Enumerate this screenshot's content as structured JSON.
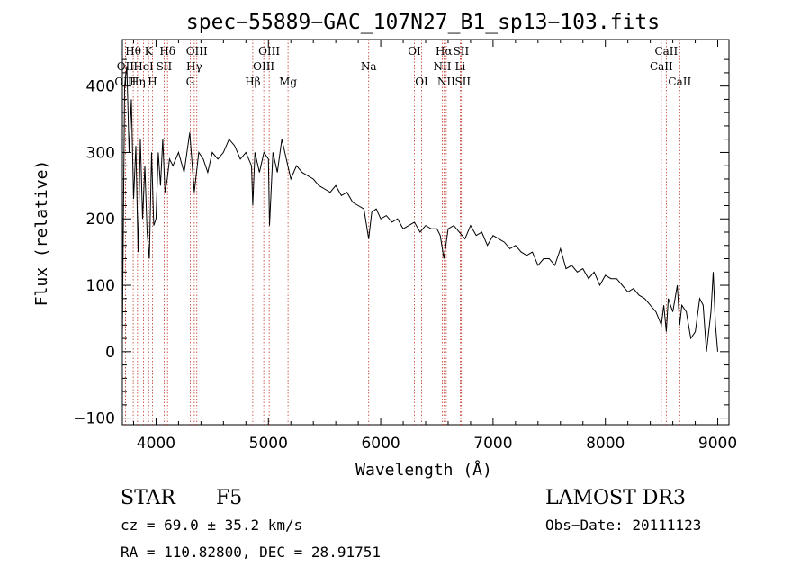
{
  "chart_data": {
    "type": "line",
    "title": "spec−55889−GAC_107N27_B1_sp13−103.fits",
    "xlabel": "Wavelength (Å)",
    "ylabel": "Flux (relative)",
    "xlim": [
      3700,
      9100
    ],
    "ylim": [
      -110,
      470
    ],
    "xticks": [
      4000,
      5000,
      6000,
      7000,
      8000,
      9000
    ],
    "yticks": [
      -100,
      0,
      100,
      200,
      300,
      400
    ],
    "ytick_labels": [
      "−100",
      "0",
      "100",
      "200",
      "300",
      "400"
    ],
    "series": [
      {
        "name": "flux",
        "x": [
          3700,
          3720,
          3740,
          3760,
          3780,
          3800,
          3820,
          3840,
          3860,
          3880,
          3900,
          3920,
          3940,
          3960,
          3980,
          4000,
          4020,
          4040,
          4060,
          4080,
          4100,
          4120,
          4150,
          4200,
          4250,
          4300,
          4340,
          4380,
          4420,
          4460,
          4500,
          4550,
          4600,
          4650,
          4700,
          4750,
          4800,
          4850,
          4861,
          4880,
          4920,
          4960,
          5000,
          5010,
          5040,
          5080,
          5120,
          5160,
          5200,
          5250,
          5300,
          5350,
          5400,
          5450,
          5500,
          5550,
          5600,
          5650,
          5700,
          5750,
          5800,
          5850,
          5893,
          5920,
          5960,
          6000,
          6050,
          6100,
          6150,
          6200,
          6250,
          6300,
          6350,
          6400,
          6450,
          6500,
          6530,
          6563,
          6600,
          6650,
          6700,
          6750,
          6800,
          6850,
          6900,
          6950,
          7000,
          7050,
          7100,
          7150,
          7200,
          7250,
          7300,
          7350,
          7400,
          7450,
          7500,
          7550,
          7600,
          7650,
          7700,
          7750,
          7800,
          7850,
          7900,
          7950,
          8000,
          8050,
          8100,
          8150,
          8200,
          8250,
          8300,
          8350,
          8400,
          8450,
          8498,
          8520,
          8542,
          8560,
          8600,
          8640,
          8662,
          8680,
          8720,
          8760,
          8800,
          8840,
          8870,
          8900,
          8940,
          8960,
          8980,
          9000
        ],
        "y": [
          20,
          400,
          430,
          300,
          380,
          230,
          310,
          150,
          320,
          200,
          280,
          180,
          140,
          300,
          190,
          200,
          300,
          250,
          320,
          240,
          260,
          290,
          280,
          300,
          270,
          330,
          240,
          300,
          290,
          270,
          300,
          290,
          300,
          320,
          310,
          290,
          300,
          280,
          220,
          300,
          270,
          300,
          290,
          190,
          300,
          270,
          320,
          290,
          260,
          280,
          270,
          265,
          260,
          250,
          245,
          240,
          250,
          235,
          240,
          225,
          220,
          215,
          170,
          210,
          215,
          200,
          205,
          195,
          200,
          185,
          190,
          195,
          180,
          190,
          185,
          185,
          175,
          140,
          185,
          190,
          180,
          170,
          190,
          175,
          180,
          160,
          175,
          170,
          165,
          155,
          160,
          150,
          145,
          150,
          130,
          140,
          140,
          130,
          155,
          125,
          130,
          120,
          125,
          110,
          120,
          100,
          115,
          110,
          110,
          100,
          90,
          95,
          85,
          80,
          70,
          60,
          40,
          70,
          30,
          80,
          60,
          100,
          40,
          70,
          60,
          20,
          30,
          80,
          70,
          0,
          60,
          120,
          40,
          0
        ]
      }
    ],
    "lines": [
      {
        "label": "Hθ",
        "wl": 3797,
        "row": 0
      },
      {
        "label": "OII",
        "wl": 3727,
        "row": 1
      },
      {
        "label": "OIII",
        "wl": 3727,
        "row": 2
      },
      {
        "label": "K",
        "wl": 3934,
        "row": 0
      },
      {
        "label": "HeI",
        "wl": 3889,
        "row": 1
      },
      {
        "label": "Hη",
        "wl": 3835,
        "row": 2
      },
      {
        "label": "SII",
        "wl": 4072,
        "row": 1
      },
      {
        "label": "H",
        "wl": 3968,
        "row": 2
      },
      {
        "label": "Hδ",
        "wl": 4102,
        "row": 0
      },
      {
        "label": "OIII",
        "wl": 4363,
        "row": 0
      },
      {
        "label": "Hγ",
        "wl": 4340,
        "row": 1
      },
      {
        "label": "G",
        "wl": 4304,
        "row": 2
      },
      {
        "label": "Hβ",
        "wl": 4861,
        "row": 2
      },
      {
        "label": "OIII",
        "wl": 5007,
        "row": 0
      },
      {
        "label": "OIII",
        "wl": 4959,
        "row": 1
      },
      {
        "label": "Mg",
        "wl": 5175,
        "row": 2
      },
      {
        "label": "Na",
        "wl": 5893,
        "row": 1
      },
      {
        "label": "OI",
        "wl": 6300,
        "row": 0
      },
      {
        "label": "OI",
        "wl": 6364,
        "row": 2
      },
      {
        "label": "Hα",
        "wl": 6563,
        "row": 0
      },
      {
        "label": "NII",
        "wl": 6548,
        "row": 1
      },
      {
        "label": "NII",
        "wl": 6583,
        "row": 2
      },
      {
        "label": "SII",
        "wl": 6716,
        "row": 0
      },
      {
        "label": "Li",
        "wl": 6708,
        "row": 1
      },
      {
        "label": "SII",
        "wl": 6731,
        "row": 2
      },
      {
        "label": "CaII",
        "wl": 8542,
        "row": 0
      },
      {
        "label": "CaII",
        "wl": 8498,
        "row": 1
      },
      {
        "label": "CaII",
        "wl": 8662,
        "row": 2
      }
    ]
  },
  "info": {
    "class": "STAR",
    "subclass": "F5",
    "survey": "LAMOST DR3",
    "cz": "cz = 69.0 ± 35.2 km/s",
    "obs_date": "Obs−Date: 20111123",
    "coords": "RA = 110.82800, DEC =  28.91751"
  }
}
